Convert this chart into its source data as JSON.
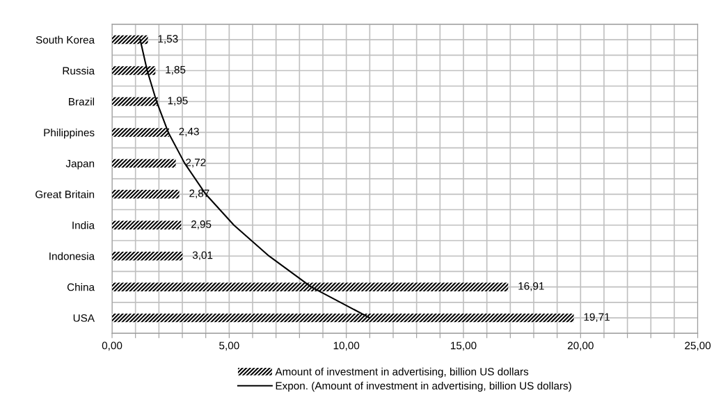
{
  "chart_data": {
    "type": "bar",
    "orientation": "horizontal",
    "categories": [
      "South Korea",
      "Russia",
      "Brazil",
      "Philippines",
      "Japan",
      "Great Britain",
      "India",
      "Indonesia",
      "China",
      "USA"
    ],
    "series": [
      {
        "name": "Amount of investment in advertising, billion US dollars",
        "color": "#000000",
        "values": [
          1.53,
          1.85,
          1.95,
          2.43,
          2.72,
          2.87,
          2.95,
          3.01,
          16.91,
          19.71
        ],
        "value_labels": [
          "1,53",
          "1,85",
          "1,95",
          "2,43",
          "2,72",
          "2,87",
          "2,95",
          "3,01",
          "16,91",
          "19,71"
        ]
      },
      {
        "name": "Expon. (Amount of investment in advertising, billion US dollars)",
        "type": "line",
        "color": "#000000",
        "marker": "none",
        "line_style": "solid",
        "values": [
          1.2,
          1.5,
          1.9,
          2.4,
          3.1,
          4.0,
          5.2,
          6.7,
          8.5,
          11.0
        ]
      }
    ],
    "xlim": [
      0,
      25
    ],
    "xticks": [
      {
        "value": 0,
        "label": "0,00"
      },
      {
        "value": 1,
        "label": null
      },
      {
        "value": 2,
        "label": null
      },
      {
        "value": 3,
        "label": null
      },
      {
        "value": 4,
        "label": null
      },
      {
        "value": 5,
        "label": "5,00"
      },
      {
        "value": 6,
        "label": null
      },
      {
        "value": 7,
        "label": null
      },
      {
        "value": 8,
        "label": null
      },
      {
        "value": 9,
        "label": null
      },
      {
        "value": 10,
        "label": "10,00"
      },
      {
        "value": 11,
        "label": null
      },
      {
        "value": 12,
        "label": null
      },
      {
        "value": 13,
        "label": null
      },
      {
        "value": 14,
        "label": null
      },
      {
        "value": 15,
        "label": "15,00"
      },
      {
        "value": 16,
        "label": null
      },
      {
        "value": 17,
        "label": null
      },
      {
        "value": 18,
        "label": null
      },
      {
        "value": 19,
        "label": null
      },
      {
        "value": 20,
        "label": "20,00"
      },
      {
        "value": 21,
        "label": null
      },
      {
        "value": 22,
        "label": null
      },
      {
        "value": 23,
        "label": null
      },
      {
        "value": 24,
        "label": null
      },
      {
        "value": 25,
        "label": "25,00"
      }
    ],
    "grid": true,
    "legend": "bottom"
  }
}
